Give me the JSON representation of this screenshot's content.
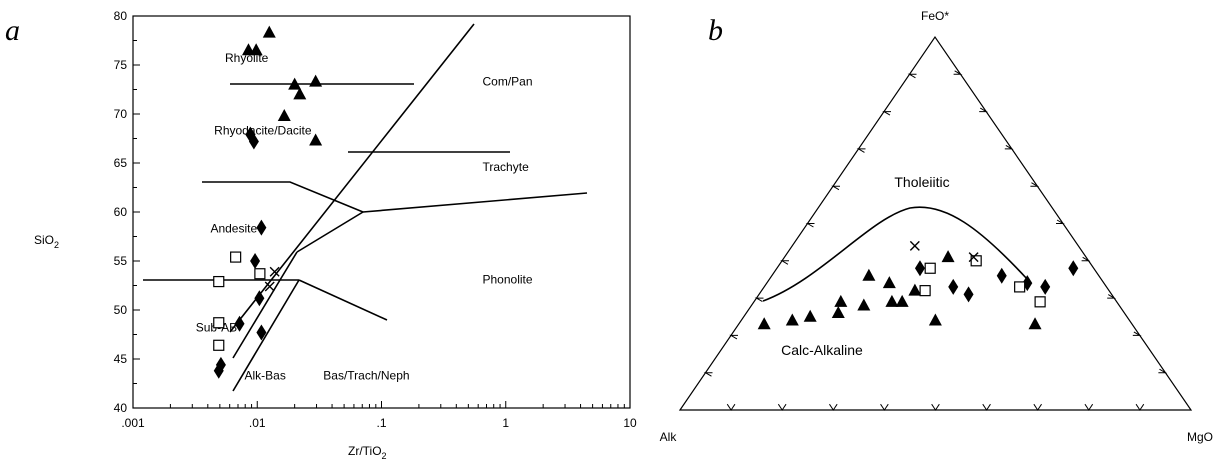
{
  "chart_data": [
    {
      "type": "scatter",
      "panel_label": "a",
      "xlabel": "Zr/TiO",
      "xlabel_sub": "2",
      "ylabel": "SiO",
      "ylabel_sub": "2",
      "xscale": "log",
      "xlim": [
        0.001,
        10
      ],
      "ylim": [
        40,
        80
      ],
      "x_tick_labels": [
        ".001",
        ".01",
        ".1",
        "1",
        "10"
      ],
      "y_tick_labels": [
        "40",
        "45",
        "50",
        "55",
        "60",
        "65",
        "70",
        "75",
        "80"
      ],
      "field_labels": [
        {
          "text": "Rhyolite",
          "x": 0.0055,
          "y": 75.7
        },
        {
          "text": "Com/Pan",
          "x": 0.65,
          "y": 73.3
        },
        {
          "text": "Rhyodacite/Dacite",
          "x": 0.0045,
          "y": 68.3
        },
        {
          "text": "Trachyte",
          "x": 0.65,
          "y": 64.6
        },
        {
          "text": "Andesite",
          "x": 0.0042,
          "y": 58.3
        },
        {
          "text": "Phonolite",
          "x": 0.65,
          "y": 53.1
        },
        {
          "text": "Sub-AB",
          "x": 0.0032,
          "y": 48.2
        },
        {
          "text": "Alk-Bas",
          "x": 0.0079,
          "y": 43.3
        },
        {
          "text": "Bas/Trach/Neph",
          "x": 0.034,
          "y": 43.3
        }
      ],
      "series": [
        {
          "marker": "triangle",
          "points": [
            [
              0.0085,
              76.5
            ],
            [
              0.0098,
              76.5
            ],
            [
              0.0125,
              78.3
            ],
            [
              0.02,
              73.0
            ],
            [
              0.022,
              72.0
            ],
            [
              0.0295,
              73.3
            ],
            [
              0.0165,
              69.8
            ],
            [
              0.0295,
              67.3
            ]
          ]
        },
        {
          "marker": "diamond",
          "points": [
            [
              0.0088,
              67.9
            ],
            [
              0.0094,
              67.2
            ],
            [
              0.0108,
              58.4
            ],
            [
              0.0096,
              55.0
            ],
            [
              0.0104,
              51.2
            ],
            [
              0.0072,
              48.6
            ],
            [
              0.0108,
              47.7
            ],
            [
              0.0051,
              44.4
            ],
            [
              0.0049,
              43.8
            ]
          ]
        },
        {
          "marker": "square",
          "points": [
            [
              0.0067,
              55.4
            ],
            [
              0.0105,
              53.7
            ],
            [
              0.0049,
              52.9
            ],
            [
              0.0049,
              48.7
            ],
            [
              0.0049,
              46.4
            ]
          ]
        },
        {
          "marker": "cross",
          "points": [
            [
              0.0138,
              53.9
            ],
            [
              0.0126,
              52.4
            ]
          ]
        }
      ]
    },
    {
      "type": "scatter",
      "panel_label": "b",
      "diagram": "AFM ternary",
      "apex_labels": {
        "top": "FeO*",
        "left": "Alk",
        "right": "MgO"
      },
      "field_labels": [
        "Tholeiitic",
        "Calc-Alkaline"
      ],
      "series": [
        {
          "marker": "triangle",
          "points": [
            [
              72,
              23,
              5
            ],
            [
              66,
              24,
              10
            ],
            [
              62,
              25,
              13
            ],
            [
              56,
              26,
              18
            ],
            [
              54,
              29,
              17
            ],
            [
              45,
              36,
              19
            ],
            [
              50,
              28,
              22
            ],
            [
              44,
              29,
              27
            ],
            [
              42,
              29,
              29
            ],
            [
              38,
              32,
              30
            ],
            [
              42,
              34,
              24
            ],
            [
              27,
              41,
              32
            ],
            [
              38,
              24,
              38
            ],
            [
              19,
              23,
              58
            ]
          ]
        },
        {
          "marker": "diamond",
          "points": [
            [
              34,
              38,
              28
            ],
            [
              30,
              33,
              37
            ],
            [
              28,
              31,
              41
            ],
            [
              19,
              36,
              45
            ],
            [
              15,
              34,
              51
            ],
            [
              12,
              33,
              55
            ],
            [
              4,
              38,
              58
            ]
          ]
        },
        {
          "marker": "square",
          "points": [
            [
              32,
              38,
              30
            ],
            [
              22,
              40,
              38
            ],
            [
              36,
              32,
              32
            ],
            [
              17,
              33,
              50
            ],
            [
              15,
              29,
              56
            ]
          ]
        },
        {
          "marker": "cross",
          "points": [
            [
              32,
              44,
              24
            ],
            [
              22,
              41,
              37
            ]
          ]
        }
      ]
    }
  ]
}
